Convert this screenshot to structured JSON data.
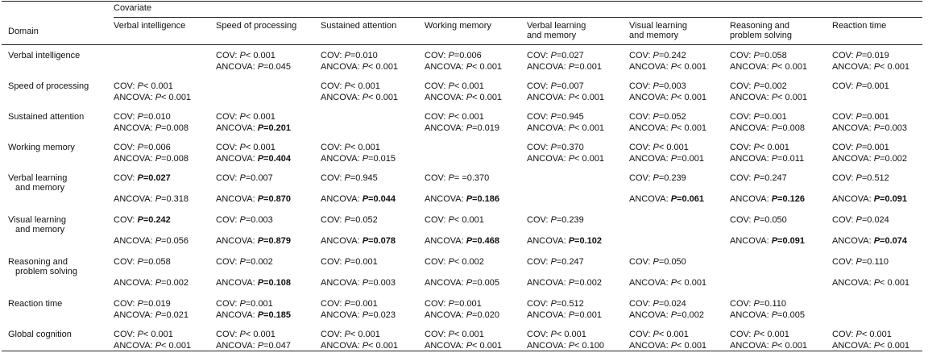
{
  "table": {
    "covariate_header": "Covariate",
    "domain_header": "Domain",
    "columns": [
      [
        "Verbal intelligence"
      ],
      [
        "Speed of processing"
      ],
      [
        "Sustained attention"
      ],
      [
        "Working memory"
      ],
      [
        "Verbal learning",
        "and memory"
      ],
      [
        "Visual learning",
        "and memory"
      ],
      [
        "Reasoning and",
        "problem solving"
      ],
      [
        "Reaction time"
      ]
    ],
    "rows": [
      {
        "domain": [
          "Verbal intelligence"
        ],
        "cells": [
          null,
          [
            [
              "COV:",
              "P",
              "< 0.001",
              false
            ],
            [
              "ANCOVA:",
              "P",
              "=0.045",
              false
            ]
          ],
          [
            [
              "COV:",
              "P",
              "=0.010",
              false
            ],
            [
              "ANCOVA:",
              "P",
              "< 0.001",
              false
            ]
          ],
          [
            [
              "COV:",
              "P",
              "=0.006",
              false
            ],
            [
              "ANCOVA:",
              "P",
              "< 0.001",
              false
            ]
          ],
          [
            [
              "COV:",
              "P",
              "=0.027",
              false
            ],
            [
              "ANCOVA:",
              "P",
              "=0.001",
              false
            ]
          ],
          [
            [
              "COV:",
              "P",
              "=0.242",
              false
            ],
            [
              "ANCOVA:",
              "P",
              "< 0.001",
              false
            ]
          ],
          [
            [
              "COV:",
              "P",
              "=0.058",
              false
            ],
            [
              "ANCOVA:",
              "P",
              "< 0.001",
              false
            ]
          ],
          [
            [
              "COV:",
              "P",
              "=0.019",
              false
            ],
            [
              "ANCOVA:",
              "P",
              "< 0.001",
              false
            ]
          ]
        ]
      },
      {
        "domain": [
          "Speed of processing"
        ],
        "cells": [
          [
            [
              "COV:",
              "P",
              "< 0.001",
              false
            ],
            [
              "ANCOVA:",
              "P",
              "< 0.001",
              false
            ]
          ],
          null,
          [
            [
              "COV:",
              "P",
              "< 0.001",
              false
            ],
            [
              "ANCOVA:",
              "P",
              "< 0.001",
              false
            ]
          ],
          [
            [
              "COV:",
              "P",
              "< 0.001",
              false
            ],
            [
              "ANCOVA:",
              "P",
              "< 0.001",
              false
            ]
          ],
          [
            [
              "COV:",
              "P",
              "=0.007",
              false
            ],
            [
              "ANCOVA:",
              "P",
              "< 0.001",
              false
            ]
          ],
          [
            [
              "COV:",
              "P",
              "=0.003",
              false
            ],
            [
              "ANCOVA:",
              "P",
              "< 0.001",
              false
            ]
          ],
          [
            [
              "COV:",
              "P",
              "=0.002",
              false
            ],
            [
              "ANCOVA:",
              "P",
              "< 0.001",
              false
            ]
          ],
          [
            [
              "COV:",
              "P",
              "=0.001",
              false
            ]
          ]
        ]
      },
      {
        "domain": [
          "Sustained attention"
        ],
        "cells": [
          [
            [
              "COV:",
              "P",
              "=0.010",
              false
            ],
            [
              "ANCOVA:",
              "P",
              "=0.008",
              false
            ]
          ],
          [
            [
              "COV:",
              "P",
              "< 0.001",
              false
            ],
            [
              "ANCOVA:",
              "P",
              "=0.201",
              true
            ]
          ],
          null,
          [
            [
              "COV:",
              "P",
              "< 0.001",
              false
            ],
            [
              "ANCOVA:",
              "P",
              "=0.019",
              false
            ]
          ],
          [
            [
              "COV:",
              "P",
              "=0.945",
              false
            ],
            [
              "ANCOVA:",
              "P",
              "< 0.001",
              false
            ]
          ],
          [
            [
              "COV:",
              "P",
              "=0.052",
              false
            ],
            [
              "ANCOVA:",
              "P",
              "< 0.001",
              false
            ]
          ],
          [
            [
              "COV:",
              "P",
              "=0.001",
              false
            ],
            [
              "ANCOVA:",
              "P",
              "=0.008",
              false
            ]
          ],
          [
            [
              "COV:",
              "P",
              "=0.001",
              false
            ],
            [
              "ANCOVA:",
              "P",
              "=0.003",
              false
            ]
          ]
        ]
      },
      {
        "domain": [
          "Working memory"
        ],
        "cells": [
          [
            [
              "COV:",
              "P",
              "=0.006",
              false
            ],
            [
              "ANCOVA:",
              "P",
              "=0.008",
              false
            ]
          ],
          [
            [
              "COV:",
              "P",
              "< 0.001",
              false
            ],
            [
              "ANCOVA:",
              "P",
              "=0.404",
              true
            ]
          ],
          [
            [
              "COV:",
              "P",
              "< 0.001",
              false
            ],
            [
              "ANCOVA:",
              "P",
              "=0.015",
              false
            ]
          ],
          null,
          [
            [
              "COV:",
              "P",
              "=0.370",
              false
            ],
            [
              "ANCOVA:",
              "P",
              "< 0.001",
              false
            ]
          ],
          [
            [
              "COV:",
              "P",
              "< 0.001",
              false
            ],
            [
              "ANCOVA:",
              "P",
              "=0.001",
              false
            ]
          ],
          [
            [
              "COV:",
              "P",
              "< 0.001",
              false
            ],
            [
              "ANCOVA:",
              "P",
              "=0.011",
              false
            ]
          ],
          [
            [
              "COV:",
              "P",
              "=0.001",
              false
            ],
            [
              "ANCOVA:",
              "P",
              "=0.002",
              false
            ]
          ]
        ]
      },
      {
        "domain": [
          "Verbal learning",
          "and memory"
        ],
        "cells": [
          [
            [
              "COV:",
              "P",
              "=0.027",
              true
            ],
            [
              "ANCOVA:",
              "P",
              "=0.318",
              false
            ]
          ],
          [
            [
              "COV:",
              "P",
              "=0.007",
              false
            ],
            [
              "ANCOVA:",
              "P",
              "=0.870",
              true
            ]
          ],
          [
            [
              "COV:",
              "P",
              "=0.945",
              false
            ],
            [
              "ANCOVA:",
              "P",
              "=0.044",
              true
            ]
          ],
          [
            [
              "COV:",
              "P",
              "= =0.370",
              false
            ],
            [
              "ANCOVA:",
              "P",
              "=0.186",
              true
            ]
          ],
          null,
          [
            [
              "COV:",
              "P",
              "=0.239",
              false
            ],
            [
              "ANCOVA:",
              "P",
              "=0.061",
              true
            ]
          ],
          [
            [
              "COV:",
              "P",
              "=0.247",
              false
            ],
            [
              "ANCOVA:",
              "P",
              "=0.126",
              true
            ]
          ],
          [
            [
              "COV:",
              "P",
              "=0.512",
              false
            ],
            [
              "ANCOVA:",
              "P",
              "=0.091",
              true
            ]
          ]
        ]
      },
      {
        "domain": [
          "Visual learning",
          "and memory"
        ],
        "cells": [
          [
            [
              "COV:",
              "P",
              "=0.242",
              true
            ],
            [
              "ANCOVA:",
              "P",
              "=0.056",
              false
            ]
          ],
          [
            [
              "COV:",
              "P",
              "=0.003",
              false
            ],
            [
              "ANCOVA:",
              "P",
              "=0.879",
              true
            ]
          ],
          [
            [
              "COV:",
              "P",
              "=0.052",
              false
            ],
            [
              "ANCOVA:",
              "P",
              "=0.078",
              true
            ]
          ],
          [
            [
              "COV:",
              "P",
              "< 0.001",
              false
            ],
            [
              "ANCOVA:",
              "P",
              "=0.468",
              true
            ]
          ],
          [
            [
              "COV:",
              "P",
              "=0.239",
              false
            ],
            [
              "ANCOVA:",
              "P",
              "=0.102",
              true
            ]
          ],
          null,
          [
            [
              "COV:",
              "P",
              "=0.050",
              false
            ],
            [
              "ANCOVA:",
              "P",
              "=0.091",
              true
            ]
          ],
          [
            [
              "COV:",
              "P",
              "=0.024",
              false
            ],
            [
              "ANCOVA:",
              "P",
              "=0.074",
              true
            ]
          ]
        ]
      },
      {
        "domain": [
          "Reasoning and",
          "problem solving"
        ],
        "cells": [
          [
            [
              "COV:",
              "P",
              "=0.058",
              false
            ],
            [
              "ANCOVA:",
              "P",
              "=0.002",
              false
            ]
          ],
          [
            [
              "COV:",
              "P",
              "=0.002",
              false
            ],
            [
              "ANCOVA:",
              "P",
              "=0.108",
              true
            ]
          ],
          [
            [
              "COV:",
              "P",
              "=0.001",
              false
            ],
            [
              "ANCOVA:",
              "P",
              "=0.003",
              false
            ]
          ],
          [
            [
              "COV:",
              "P",
              "< 0.002",
              false
            ],
            [
              "ANCOVA:",
              "P",
              "=0.005",
              false
            ]
          ],
          [
            [
              "COV:",
              "P",
              "=0.247",
              false
            ],
            [
              "ANCOVA:",
              "P",
              "=0.002",
              false
            ]
          ],
          [
            [
              "COV:",
              "P",
              "=0.050",
              false
            ],
            [
              "ANCOVA:",
              "P",
              "< 0.001",
              false
            ]
          ],
          null,
          [
            [
              "COV:",
              "P",
              "=0.110",
              false
            ],
            [
              "ANCOVA:",
              "P",
              "< 0.001",
              false
            ]
          ]
        ]
      },
      {
        "domain": [
          "Reaction time"
        ],
        "cells": [
          [
            [
              "COV:",
              "P",
              "=0.019",
              false
            ],
            [
              "ANCOVA:",
              "P",
              "=0.021",
              false
            ]
          ],
          [
            [
              "COV:",
              "P",
              "=0.001",
              false
            ],
            [
              "ANCOVA:",
              "P",
              "=0.185",
              true
            ]
          ],
          [
            [
              "COV:",
              "P",
              "=0.001",
              false
            ],
            [
              "ANCOVA:",
              "P",
              "=0.023",
              false
            ]
          ],
          [
            [
              "COV:",
              "P",
              "=0.001",
              false
            ],
            [
              "ANCOVA:",
              "P",
              "=0.020",
              false
            ]
          ],
          [
            [
              "COV:",
              "P",
              "=0.512",
              false
            ],
            [
              "ANCOVA:",
              "P",
              "=0.001",
              false
            ]
          ],
          [
            [
              "COV:",
              "P",
              "=0.024",
              false
            ],
            [
              "ANCOVA:",
              "P",
              "=0.002",
              false
            ]
          ],
          [
            [
              "COV:",
              "P",
              "=0.110",
              false
            ],
            [
              "ANCOVA:",
              "P",
              "=0.005",
              false
            ]
          ],
          null
        ]
      },
      {
        "domain": [
          "Global cognition"
        ],
        "cells": [
          [
            [
              "COV:",
              "P",
              "< 0.001",
              false
            ],
            [
              "ANCOVA:",
              "P",
              "< 0.001",
              false
            ]
          ],
          [
            [
              "COV:",
              "P",
              "< 0.001",
              false
            ],
            [
              "ANCOVA:",
              "P",
              "=0.047",
              false
            ]
          ],
          [
            [
              "COV:",
              "P",
              "< 0.001",
              false
            ],
            [
              "ANCOVA:",
              "P",
              "< 0.001",
              false
            ]
          ],
          [
            [
              "COV:",
              "P",
              "< 0.001",
              false
            ],
            [
              "ANCOVA:",
              "P",
              "< 0.001",
              false
            ]
          ],
          [
            [
              "COV:",
              "P",
              "< 0.001",
              false
            ],
            [
              "ANCOVA:",
              "P",
              "< 0.100",
              false
            ]
          ],
          [
            [
              "COV:",
              "P",
              "< 0.001",
              false
            ],
            [
              "ANCOVA:",
              "P",
              "< 0.001",
              false
            ]
          ],
          [
            [
              "COV:",
              "P",
              "< 0.001",
              false
            ],
            [
              "ANCOVA:",
              "P",
              "< 0.001",
              false
            ]
          ],
          [
            [
              "COV:",
              "P",
              "< 0.001",
              false
            ],
            [
              "ANCOVA:",
              "P",
              "< 0.001",
              false
            ]
          ]
        ]
      }
    ]
  }
}
